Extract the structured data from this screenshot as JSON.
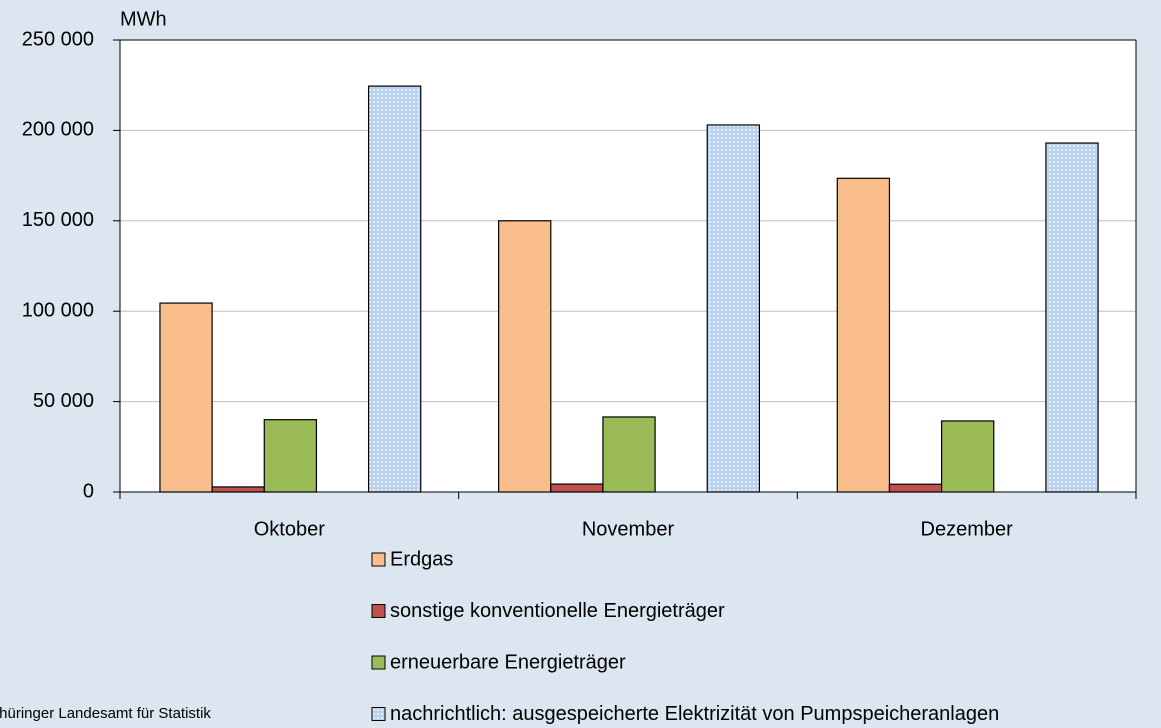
{
  "chart_data": {
    "type": "bar",
    "unit": "MWh",
    "categories": [
      "Oktober",
      "November",
      "Dezember"
    ],
    "series": [
      {
        "name": "Erdgas",
        "color": "#f9be8c",
        "values": [
          104500,
          150000,
          173500
        ]
      },
      {
        "name": "sonstige konventionelle Energieträger",
        "color": "#c0504d",
        "values": [
          2800,
          4400,
          4300
        ]
      },
      {
        "name": "erneuerbare Energieträger",
        "color": "#9bbb59",
        "values": [
          40000,
          41500,
          39300
        ]
      },
      {
        "name": "nachrichtlich: ausgespeicherte Elektrizität von Pumpspeicheranlagen",
        "color": "#b9d3ee",
        "pattern": "dotted",
        "values": [
          224500,
          203000,
          193000
        ]
      }
    ],
    "ylim": [
      0,
      250000
    ],
    "yticks": [
      0,
      {
        "value": 50000,
        "label": "50 000"
      },
      {
        "value": 100000,
        "label": "100 000"
      },
      {
        "value": 150000,
        "label": "150 000"
      },
      {
        "value": 200000,
        "label": "200 000"
      },
      {
        "value": 250000,
        "label": "250 000"
      }
    ],
    "grid": true,
    "legend": "bottom",
    "source": "Thüringer Landesamt für Statistik"
  }
}
